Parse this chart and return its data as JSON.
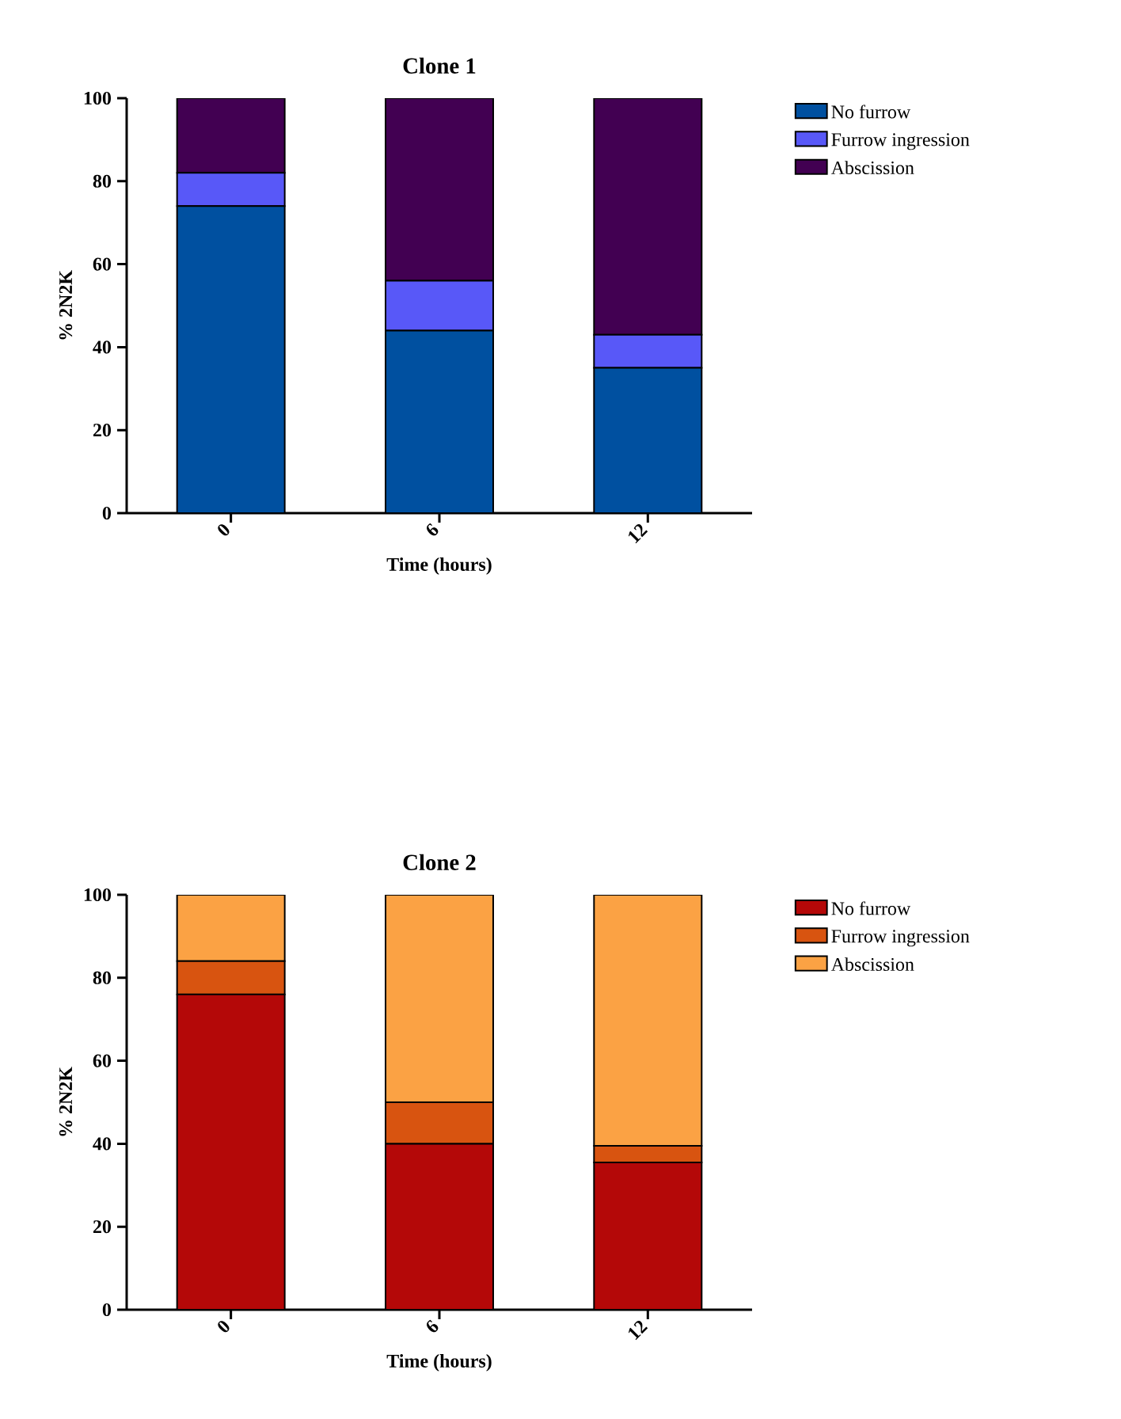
{
  "chart_data": [
    {
      "type": "bar",
      "stacked": true,
      "title": "Clone 1",
      "xlabel": "Time (hours)",
      "ylabel": "% 2N2K",
      "categories": [
        "0",
        "6",
        "12"
      ],
      "ylim": [
        0,
        100
      ],
      "yticks": [
        0,
        20,
        40,
        60,
        80,
        100
      ],
      "legend": "right",
      "series": [
        {
          "name": "No furrow",
          "color": "#0050a0",
          "values": [
            74,
            44,
            35
          ]
        },
        {
          "name": "Furrow ingression",
          "color": "#5858f8",
          "values": [
            8,
            12,
            8
          ]
        },
        {
          "name": "Abscission",
          "color": "#420052",
          "values": [
            18,
            44,
            57
          ]
        }
      ]
    },
    {
      "type": "bar",
      "stacked": true,
      "title": "Clone 2",
      "xlabel": "Time (hours)",
      "ylabel": "% 2N2K",
      "categories": [
        "0",
        "6",
        "12"
      ],
      "ylim": [
        0,
        100
      ],
      "yticks": [
        0,
        20,
        40,
        60,
        80,
        100
      ],
      "legend": "right",
      "series": [
        {
          "name": "No furrow",
          "color": "#b40808",
          "values": [
            76,
            40,
            35.5
          ]
        },
        {
          "name": "Furrow ingression",
          "color": "#d85410",
          "values": [
            8,
            10,
            4
          ]
        },
        {
          "name": "Abscission",
          "color": "#fba244",
          "values": [
            16,
            50,
            60.5
          ]
        }
      ]
    }
  ]
}
